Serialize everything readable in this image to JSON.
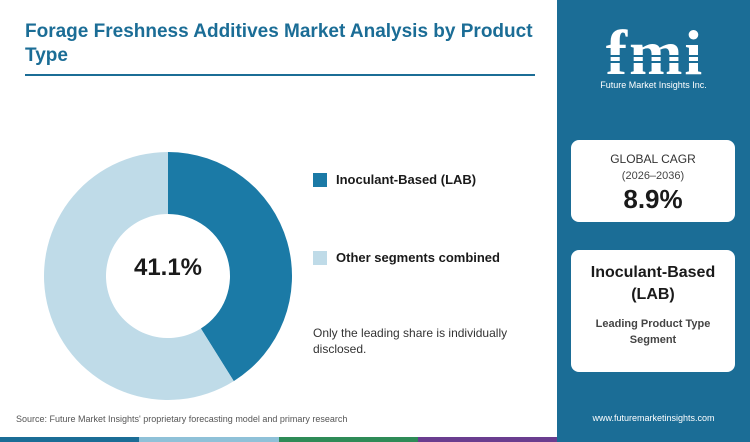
{
  "title": "Forage Freshness Additives Market Analysis by Product Type",
  "chart_data": {
    "type": "pie",
    "donut": true,
    "center_label": "41.1%",
    "slices": [
      {
        "name": "Inoculant-Based (LAB)",
        "value": 41.1,
        "color": "#1b7aa6"
      },
      {
        "name": "Other segments combined",
        "value": 58.9,
        "color": "#bfdbe8"
      }
    ],
    "legend_position": "right"
  },
  "note": "Only the leading share is individually disclosed.",
  "source": "Source: Future Market Insights' proprietary forecasting model and primary research",
  "sidebar": {
    "logo_text": "fmi",
    "logo_subtitle": "Future Market Insights Inc.",
    "cagr_label": "GLOBAL CAGR",
    "cagr_period": "(2026–2036)",
    "cagr_value": "8.9%",
    "leading_value": "Inoculant-Based (LAB)",
    "leading_label": "Leading Product Type Segment",
    "website": "www.futuremarketinsights.com"
  },
  "colors": {
    "brand": "#1b6d96",
    "bottom_bar": [
      "#1b6d96",
      "#8fc1d8",
      "#2e8b57",
      "#6a3d8f"
    ]
  }
}
